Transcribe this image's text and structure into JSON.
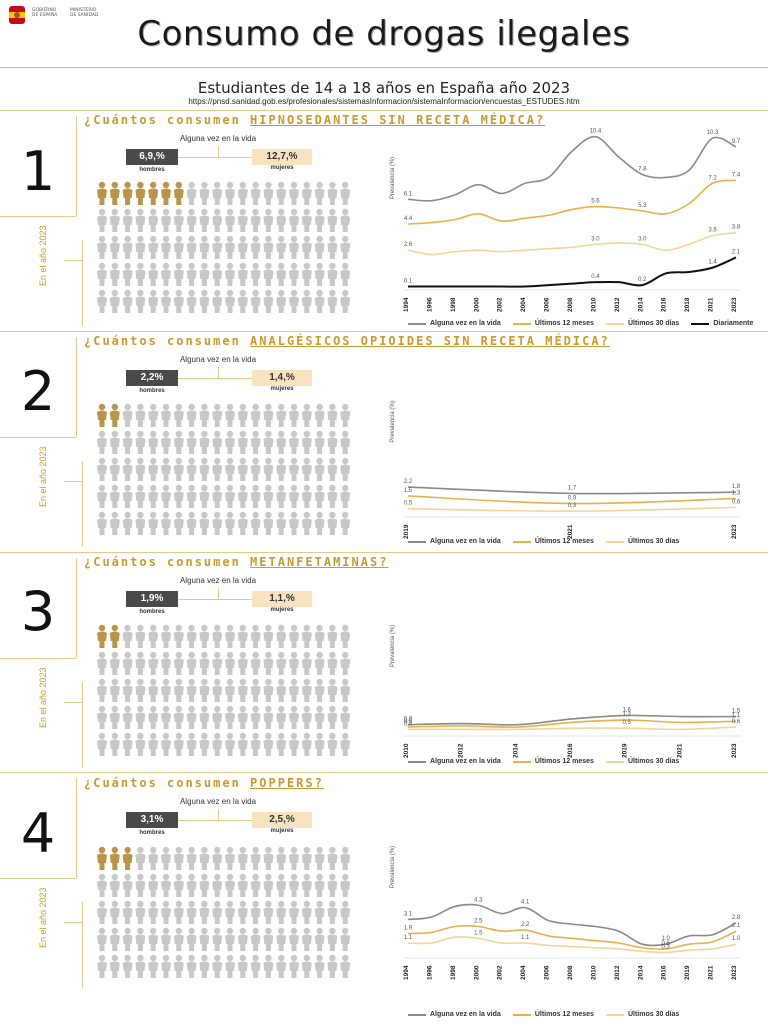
{
  "header": {
    "logo_left": "GOBIERNO\nDE ESPAÑA",
    "logo_right": "MINISTERIO\nDE SANIDAD",
    "title": "Consumo de drogas ilegales",
    "subtitle": "Estudiantes de 14 a 18 años en España año 2023",
    "source_url": "https://pnsd.sanidad.gob.es/profesionales/sistemasInformacion/sistemaInformacion/encuestas_ESTUDES.htm"
  },
  "colors": {
    "ever": "#8a8a8a",
    "year": "#e8b04a",
    "month": "#f3d49a",
    "daily": "#111111",
    "gold": "#c99a2e"
  },
  "sections": [
    {
      "number": "1",
      "question_prefix": "¿Cuántos consumen ",
      "substance": "HIPNOSEDANTES SIN RECETA MÉDICA?",
      "ever_label": "Alguna vez en la vida",
      "men_value": "6,9,%",
      "women_value": "12,7,%",
      "men_label": "hombres",
      "women_label": "mujeres",
      "year_label": "En el año 2023"
    },
    {
      "number": "2",
      "question_prefix": "¿Cuántos consumen ",
      "substance": "ANALGÉSICOS OPIOIDES SIN RECETA MÉDICA?",
      "ever_label": "Alguna vez en la vida",
      "men_value": "2,2%",
      "women_value": "1,4,%",
      "men_label": "hombres",
      "women_label": "mujeres",
      "year_label": "En el año 2023"
    },
    {
      "number": "3",
      "question_prefix": "¿Cuántos consumen ",
      "substance": "METANFETAMINAS?",
      "ever_label": "Alguna vez en la vida",
      "men_value": "1,9%",
      "women_value": "1,1,%",
      "men_label": "hombres",
      "women_label": "mujeres",
      "year_label": "En el año 2023"
    },
    {
      "number": "4",
      "question_prefix": "¿Cuántos consumen ",
      "substance": "POPPERS?",
      "ever_label": "Alguna vez en la vida",
      "men_value": "3,1%",
      "women_value": "2,5,%",
      "men_label": "hombres",
      "women_label": "mujeres",
      "year_label": "En el año 2023"
    }
  ],
  "chart_data": [
    {
      "type": "line",
      "ylabel": "Prevalencia (%)",
      "x": [
        "1994",
        "1996",
        "1998",
        "2000",
        "2002",
        "2004",
        "2006",
        "2008",
        "2010",
        "2012",
        "2014",
        "2016",
        "2018",
        "2021",
        "2023"
      ],
      "ylim": [
        0,
        11
      ],
      "series": [
        {
          "name": "Alguna vez en la vida",
          "color": "#8a8a8a",
          "values": [
            6.1,
            6.0,
            6.4,
            7.1,
            6.5,
            7.2,
            7.6,
            9.4,
            10.4,
            9.0,
            7.8,
            7.6,
            8.1,
            10.3,
            9.7
          ],
          "labels": {
            "0": "6.1",
            "8": "10.4",
            "10": "7.8",
            "13": "10.3",
            "14": "9.7"
          }
        },
        {
          "name": "Últimos 12 meses",
          "color": "#e8b04a",
          "values": [
            4.4,
            4.5,
            4.7,
            5.1,
            4.6,
            4.8,
            5.0,
            5.4,
            5.6,
            5.5,
            5.3,
            5.1,
            5.8,
            7.2,
            7.4
          ],
          "labels": {
            "0": "4.4",
            "8": "5.6",
            "10": "5.3",
            "13": "7.2",
            "14": "7.4"
          }
        },
        {
          "name": "Últimos 30 días",
          "color": "#f3d49a",
          "values": [
            2.6,
            2.3,
            2.5,
            2.6,
            2.5,
            2.6,
            2.7,
            2.8,
            3.0,
            3.1,
            3.0,
            2.6,
            3.0,
            3.6,
            3.8
          ],
          "labels": {
            "0": "2.6",
            "8": "3.0",
            "10": "3.0",
            "13": "3.6",
            "14": "3.8"
          }
        },
        {
          "name": "Diariamente",
          "color": "#111111",
          "values": [
            0.1,
            0.1,
            0.1,
            0.1,
            0.1,
            0.1,
            0.2,
            0.3,
            0.4,
            0.4,
            0.2,
            1.0,
            1.1,
            1.4,
            2.1
          ],
          "labels": {
            "0": "0.1",
            "8": "0.4",
            "10": "0.2",
            "13": "1.4",
            "14": "2.1"
          }
        }
      ]
    },
    {
      "type": "line",
      "ylabel": "Prevalencia (%)",
      "x": [
        "2019",
        "2021",
        "2023"
      ],
      "ylim": [
        0,
        10
      ],
      "series": [
        {
          "name": "Alguna vez en la vida",
          "color": "#8a8a8a",
          "values": [
            2.2,
            1.7,
            1.8
          ],
          "labels": {
            "0": "2,2",
            "1": "1,7",
            "2": "1,8"
          }
        },
        {
          "name": "Últimos 12 meses",
          "color": "#e8b04a",
          "values": [
            1.5,
            0.9,
            1.3
          ],
          "labels": {
            "0": "1,5",
            "1": "0,9",
            "2": "1,3"
          }
        },
        {
          "name": "Últimos 30 días",
          "color": "#f3d49a",
          "values": [
            0.5,
            0.3,
            0.6
          ],
          "labels": {
            "0": "0,5",
            "1": "0,3",
            "2": "0,6"
          }
        }
      ]
    },
    {
      "type": "line",
      "ylabel": "Prevalencia (%)",
      "x": [
        "2010",
        "2012",
        "2014",
        "2016",
        "2019",
        "2021",
        "2023"
      ],
      "ylim": [
        0,
        10
      ],
      "series": [
        {
          "name": "Alguna vez en la vida",
          "color": "#8a8a8a",
          "values": [
            0.8,
            0.9,
            0.8,
            1.3,
            1.6,
            1.5,
            1.5
          ],
          "labels": {
            "0": "0,8",
            "4": "1,6",
            "6": "1,5"
          }
        },
        {
          "name": "Últimos 12 meses",
          "color": "#e8b04a",
          "values": [
            0.6,
            0.7,
            0.6,
            1.0,
            1.2,
            1.0,
            1.1
          ],
          "labels": {
            "0": "0,6",
            "4": "1,2",
            "6": "1,1"
          }
        },
        {
          "name": "Últimos 30 días",
          "color": "#f3d49a",
          "values": [
            0.4,
            0.4,
            0.4,
            0.5,
            0.5,
            0.4,
            0.6
          ],
          "labels": {
            "0": "0,4",
            "4": "0,5",
            "6": "0,6"
          }
        }
      ]
    },
    {
      "type": "line",
      "ylabel": "Prevalencia (%)",
      "x": [
        "1994",
        "1996",
        "1998",
        "2000",
        "2002",
        "2004",
        "2006",
        "2008",
        "2010",
        "2012",
        "2014",
        "2016",
        "2019",
        "2021",
        "2023"
      ],
      "ylim": [
        0,
        10
      ],
      "series": [
        {
          "name": "Alguna vez en la vida",
          "color": "#8a8a8a",
          "values": [
            3.1,
            3.3,
            4.2,
            4.3,
            3.6,
            4.1,
            3.0,
            2.7,
            2.5,
            2.1,
            1.0,
            1.0,
            1.7,
            1.8,
            2.8
          ],
          "labels": {
            "0": "3.1",
            "3": "4.3",
            "5": "4.1",
            "11": "1.0",
            "14": "2.8"
          }
        },
        {
          "name": "Últimos 12 meses",
          "color": "#e8b04a",
          "values": [
            1.9,
            2.0,
            2.5,
            2.5,
            2.1,
            2.2,
            1.7,
            1.5,
            1.3,
            1.1,
            0.7,
            0.6,
            1.0,
            1.2,
            2.1
          ],
          "labels": {
            "0": "1.9",
            "3": "2.5",
            "5": "2.2",
            "11": "0.6",
            "14": "2.1"
          }
        },
        {
          "name": "Últimos 30 días",
          "color": "#f3d49a",
          "values": [
            1.1,
            1.1,
            1.6,
            1.5,
            1.1,
            1.1,
            0.9,
            0.8,
            0.7,
            0.6,
            0.4,
            0.3,
            0.5,
            0.6,
            1.0
          ],
          "labels": {
            "0": "1.1",
            "3": "1.5",
            "5": "1.1",
            "11": "0.3",
            "14": "1.0"
          }
        }
      ]
    }
  ]
}
